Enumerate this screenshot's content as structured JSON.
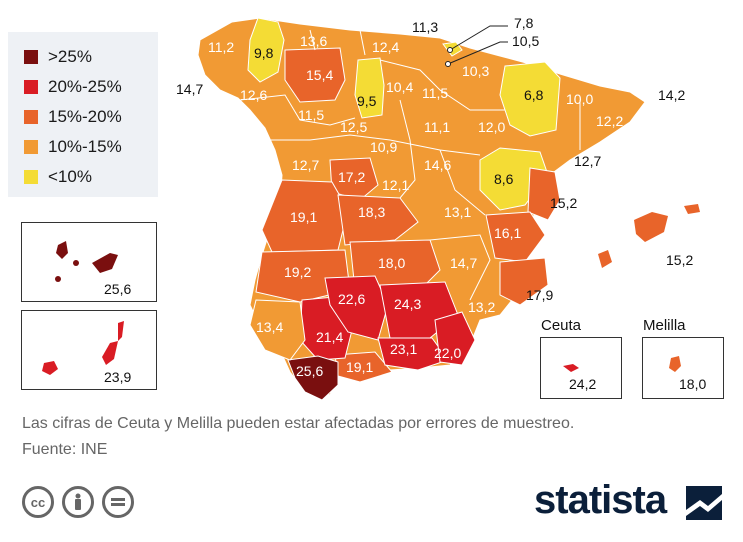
{
  "legend": [
    {
      "label": ">25%",
      "color": "#7a0f0f"
    },
    {
      "label": "20%-25%",
      "color": "#d91c24"
    },
    {
      "label": "15%-20%",
      "color": "#e8642a"
    },
    {
      "label": "10%-15%",
      "color": "#f19a34"
    },
    {
      "label": "<10%",
      "color": "#f4dc35"
    }
  ],
  "regions": {
    "galicia_w": "11,2",
    "lugo": "9,8",
    "asturias": "13,6",
    "cantabria": "12,4",
    "bizkaia": "11,3",
    "alava": "7,8",
    "gipuzkoa": "10,5",
    "navarra_w": "10,3",
    "leon_coast": "14,7",
    "ourense": "12,6",
    "leon": "15,4",
    "palencia": "9,5",
    "burgos": "10,4",
    "rioja": "11,5",
    "huesca": "6,8",
    "lleida": "10,0",
    "girona": "14,2",
    "zamora": "11,5",
    "valladolid": "12,5",
    "soria": "11,1",
    "zaragoza_n": "12,0",
    "barcelona": "12,2",
    "salamanca": "10,9",
    "segovia": "12,7",
    "avila": "17,2",
    "madrid": "12,1",
    "guadalajara": "14,6",
    "teruel": "8,6",
    "tarragona": "12,7",
    "caceres": "19,1",
    "toledo": "18,3",
    "cuenca": "13,1",
    "castellon": "15,2",
    "baleares": "15,2",
    "valencia": "16,1",
    "badajoz": "19,2",
    "ciudad_real": "18,0",
    "albacete": "14,7",
    "alicante": "17,9",
    "murcia": "13,2",
    "huelva": "13,4",
    "sevilla": "21,4",
    "cordoba": "22,6",
    "jaen": "24,3",
    "granada": "23,1",
    "almeria": "22,0",
    "cadiz": "25,6",
    "malaga": "19,1",
    "tenerife": "25,6",
    "gran_canaria": "23,9",
    "ceuta": "24,2",
    "melilla": "18,0"
  },
  "insets": {
    "ceuta_label": "Ceuta",
    "melilla_label": "Melilla"
  },
  "caption": "Las cifras de Ceuta y Melilla pueden estar afectadas por errores de muestreo.",
  "source": "Fuente: INE",
  "brand": "statista",
  "license_icons": [
    "cc-icon",
    "person-icon",
    "equals-icon"
  ]
}
